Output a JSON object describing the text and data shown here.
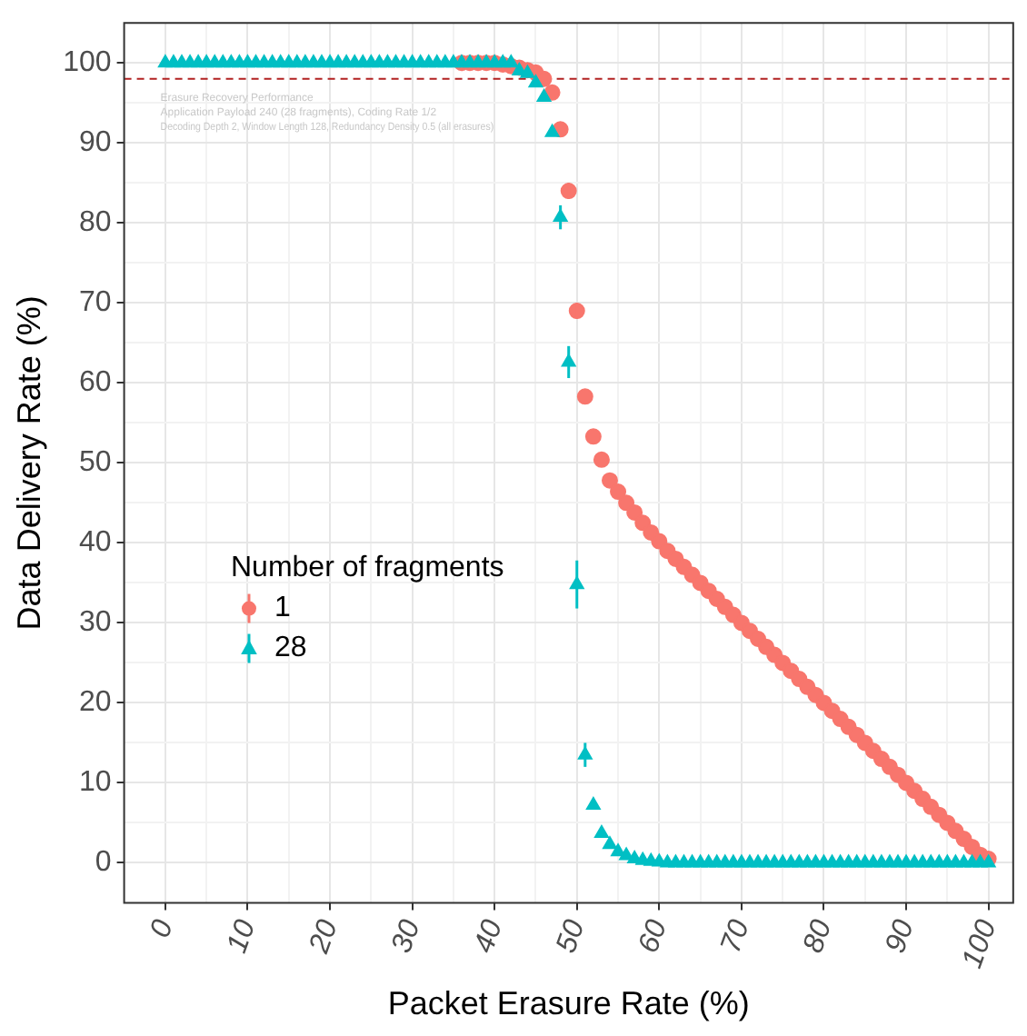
{
  "chart_data": {
    "type": "scatter",
    "xlabel": "Packet Erasure Rate (%)",
    "ylabel": "Data Delivery Rate (%)",
    "legend_title": "Number of fragments",
    "legend": "bottom left",
    "grid": true,
    "annotations": [
      "Erasure Recovery Performance",
      "Application Payload 240 (28 fragments), Coding Rate 1/2",
      "Decoding Depth 2, Window Length 128, Redundancy Density 0.5 (all erasures)"
    ],
    "xlim": [
      -5,
      103
    ],
    "ylim": [
      -5,
      105
    ],
    "xticks": [
      0,
      {
        "value": 5,
        "label": null
      },
      10,
      {
        "value": 15,
        "label": null
      },
      20,
      {
        "value": 25,
        "label": null
      },
      30,
      {
        "value": 35,
        "label": null
      },
      40,
      {
        "value": 45,
        "label": null
      },
      50,
      {
        "value": 55,
        "label": null
      },
      60,
      {
        "value": 65,
        "label": null
      },
      70,
      {
        "value": 75,
        "label": null
      },
      80,
      {
        "value": 85,
        "label": null
      },
      90,
      {
        "value": 95,
        "label": null
      },
      100
    ],
    "yticks": [
      0,
      {
        "value": 5,
        "label": null
      },
      10,
      {
        "value": 15,
        "label": null
      },
      20,
      {
        "value": 25,
        "label": null
      },
      30,
      {
        "value": 35,
        "label": null
      },
      40,
      {
        "value": 45,
        "label": null
      },
      50,
      {
        "value": 55,
        "label": null
      },
      60,
      {
        "value": 65,
        "label": null
      },
      70,
      {
        "value": 75,
        "label": null
      },
      80,
      {
        "value": 85,
        "label": null
      },
      90,
      {
        "value": 95,
        "label": null
      },
      100
    ],
    "ref_lines": [
      {
        "axis": "y",
        "value": 98,
        "color": "#b22222",
        "line_style": "dashed"
      }
    ],
    "x": [
      0,
      1,
      2,
      3,
      4,
      5,
      6,
      7,
      8,
      9,
      10,
      11,
      12,
      13,
      14,
      15,
      16,
      17,
      18,
      19,
      20,
      21,
      22,
      23,
      24,
      25,
      26,
      27,
      28,
      29,
      30,
      31,
      32,
      33,
      34,
      35,
      36,
      37,
      38,
      39,
      40,
      41,
      42,
      43,
      44,
      45,
      46,
      47,
      48,
      49,
      50,
      51,
      52,
      53,
      54,
      55,
      56,
      57,
      58,
      59,
      60,
      61,
      62,
      63,
      64,
      65,
      66,
      67,
      68,
      69,
      70,
      71,
      72,
      73,
      74,
      75,
      76,
      77,
      78,
      79,
      80,
      81,
      82,
      83,
      84,
      85,
      86,
      87,
      88,
      89,
      90,
      91,
      92,
      93,
      94,
      95,
      96,
      97,
      98,
      99,
      100
    ],
    "series": [
      {
        "name": "1",
        "color": "#f8766d",
        "marker": "circle",
        "values": [
          null,
          null,
          null,
          null,
          null,
          null,
          null,
          null,
          null,
          null,
          null,
          null,
          null,
          null,
          null,
          null,
          null,
          null,
          null,
          null,
          null,
          null,
          null,
          null,
          null,
          null,
          null,
          null,
          null,
          null,
          null,
          null,
          null,
          null,
          null,
          null,
          100,
          100,
          100,
          100,
          100,
          99.8,
          99.6,
          99.4,
          99.1,
          98.8,
          98,
          96.3,
          91.7,
          84,
          69,
          58.3,
          53.3,
          50.4,
          47.8,
          46.4,
          45,
          43.8,
          42.5,
          41.3,
          40.2,
          39,
          38,
          37,
          36,
          35,
          34,
          33,
          32,
          31,
          30,
          29,
          28,
          27,
          26,
          25,
          24,
          23,
          22,
          21,
          20,
          19,
          18,
          17,
          16,
          15,
          14,
          13,
          12,
          11,
          10,
          9,
          8,
          7,
          6,
          5,
          4,
          3,
          2,
          1,
          0.5
        ],
        "errors": [
          null,
          null,
          null,
          null,
          null,
          null,
          null,
          null,
          null,
          null,
          null,
          null,
          null,
          null,
          null,
          null,
          null,
          null,
          null,
          null,
          null,
          null,
          null,
          null,
          null,
          null,
          null,
          null,
          null,
          null,
          null,
          null,
          null,
          null,
          null,
          null,
          null,
          null,
          null,
          null,
          null,
          null,
          null,
          null,
          null,
          null,
          null,
          null,
          null,
          1,
          1,
          null,
          null,
          null,
          null,
          null,
          null,
          null,
          null,
          null,
          null,
          null,
          null,
          null,
          null,
          null,
          null,
          null,
          null,
          null,
          null,
          null,
          null,
          null,
          null,
          null,
          null,
          null,
          null,
          null,
          null,
          null,
          null,
          null,
          null,
          null,
          null,
          null,
          null,
          null,
          null,
          null,
          null,
          null,
          null,
          null,
          null,
          null,
          null,
          null,
          null
        ]
      },
      {
        "name": "28",
        "color": "#00bfc4",
        "marker": "triangle",
        "values": [
          100,
          100,
          100,
          100,
          100,
          100,
          100,
          100,
          100,
          100,
          100,
          100,
          100,
          100,
          100,
          100,
          100,
          100,
          100,
          100,
          100,
          100,
          100,
          100,
          100,
          100,
          100,
          100,
          100,
          100,
          100,
          100,
          100,
          100,
          100,
          100,
          100,
          100,
          100,
          100,
          100,
          100,
          100,
          99,
          98.7,
          97.5,
          95.7,
          91.3,
          80.7,
          62.6,
          34.8,
          13.5,
          7.2,
          3.7,
          2.3,
          1.4,
          0.9,
          0.5,
          0.3,
          0.2,
          0.1,
          0,
          0,
          0,
          0,
          0,
          0,
          0,
          0,
          0,
          0,
          0,
          0,
          0,
          0,
          0,
          0,
          0,
          0,
          0,
          0,
          0,
          0,
          0,
          0,
          0,
          0,
          0,
          0,
          0,
          0,
          0,
          0,
          0,
          0,
          0,
          0,
          0,
          0,
          0,
          0
        ],
        "errors": [
          null,
          null,
          null,
          null,
          null,
          null,
          null,
          null,
          null,
          null,
          null,
          null,
          null,
          null,
          null,
          null,
          null,
          null,
          null,
          null,
          null,
          null,
          null,
          null,
          null,
          null,
          null,
          null,
          null,
          null,
          null,
          null,
          null,
          null,
          null,
          null,
          null,
          null,
          null,
          null,
          null,
          null,
          null,
          null,
          null,
          null,
          null,
          null,
          1.5,
          2,
          3,
          1.5,
          null,
          null,
          null,
          null,
          null,
          null,
          null,
          null,
          null,
          null,
          null,
          null,
          null,
          null,
          null,
          null,
          null,
          null,
          null,
          null,
          null,
          null,
          null,
          null,
          null,
          null,
          null,
          null,
          null,
          null,
          null,
          null,
          null,
          null,
          null,
          null,
          null,
          null,
          null,
          null,
          null,
          null,
          null,
          null,
          null,
          null,
          null,
          null,
          null
        ]
      }
    ]
  }
}
